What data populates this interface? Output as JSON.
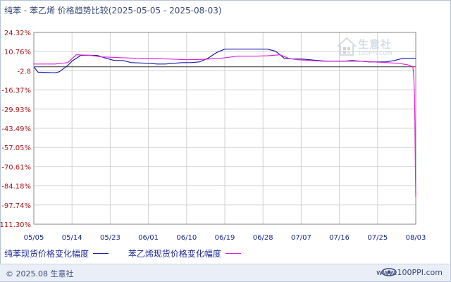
{
  "title": "纯苯 - 苯乙烯 价格趋势比较(2025-05-05 - 2025-08-03)",
  "watermark": {
    "name": "生意社",
    "url": "100PPI.COM"
  },
  "footer": {
    "copyright": "© 2025.08 生意社",
    "site": "www.100PPI.com"
  },
  "legend": [
    {
      "label": "纯苯现货价格变化幅度",
      "color": "#1a1aa6"
    },
    {
      "label": "苯乙烯现货价格变化幅度",
      "color": "#e020d8"
    }
  ],
  "chart_data": {
    "type": "line",
    "title": "纯苯 - 苯乙烯 价格趋势比较(2025-05-05 - 2025-08-03)",
    "x_ticks": [
      "05/05",
      "05/14",
      "05/23",
      "06/01",
      "06/10",
      "06/19",
      "06/28",
      "07/07",
      "07/16",
      "07/25",
      "08/03"
    ],
    "y_ticks": [
      "24.32%",
      "10.76%",
      "-2.8",
      "-16.37%",
      "-29.93%",
      "-43.49%",
      "-57.05%",
      "-70.61%",
      "-84.18%",
      "-97.74%",
      "-111.30%"
    ],
    "y_tick_values": [
      24.32,
      10.76,
      -2.8,
      -16.37,
      -29.93,
      -43.49,
      -57.05,
      -70.61,
      -84.18,
      -97.74,
      -111.3
    ],
    "ylim": [
      -111.3,
      24.32
    ],
    "x_range_days": [
      0,
      90
    ],
    "grid": true,
    "series": [
      {
        "name": "纯苯现货价格变化幅度",
        "color": "#1a1aa6",
        "x": [
          0,
          1,
          5,
          6,
          8,
          9,
          11,
          13,
          15,
          17,
          19,
          21,
          23,
          27,
          29,
          31,
          33,
          35,
          37,
          39,
          41,
          43,
          45,
          47,
          49,
          51,
          53,
          55,
          57,
          59,
          61,
          63,
          65,
          67,
          69,
          71,
          73,
          75,
          77,
          79,
          81,
          83,
          85,
          87,
          89,
          90
        ],
        "y": [
          0,
          -3.8,
          -4.2,
          -3.5,
          1,
          4,
          8,
          8.2,
          8,
          6,
          4.5,
          4.5,
          3,
          2.5,
          2,
          2,
          2.5,
          3,
          3,
          3.5,
          6,
          10,
          12.5,
          12.5,
          12.5,
          12.5,
          12.5,
          12.5,
          11,
          6,
          5.5,
          5.5,
          5,
          4.5,
          4,
          4,
          4,
          4.5,
          4,
          3.5,
          3.5,
          3.5,
          4.5,
          6,
          6,
          6
        ]
      },
      {
        "name": "苯乙烯现货价格变化幅度",
        "color": "#e020d8",
        "x": [
          0,
          5,
          8,
          10,
          13,
          16,
          20,
          24,
          28,
          32,
          36,
          40,
          44,
          48,
          52,
          55,
          58,
          60,
          62,
          65,
          68,
          71,
          74,
          77,
          80,
          83,
          86,
          87,
          88,
          88.5,
          89.3,
          89.5,
          89.7,
          89.8,
          89.9,
          90
        ],
        "y": [
          2,
          2,
          3,
          8.5,
          8.2,
          7,
          6.5,
          6,
          5.8,
          5.5,
          5,
          5.3,
          6,
          7.5,
          7.5,
          7.8,
          8.5,
          6,
          5,
          4.5,
          4,
          4,
          4,
          4,
          3.5,
          3,
          2.5,
          2,
          1.5,
          1,
          0,
          -5,
          -20,
          -40,
          -70,
          -92
        ]
      }
    ]
  }
}
